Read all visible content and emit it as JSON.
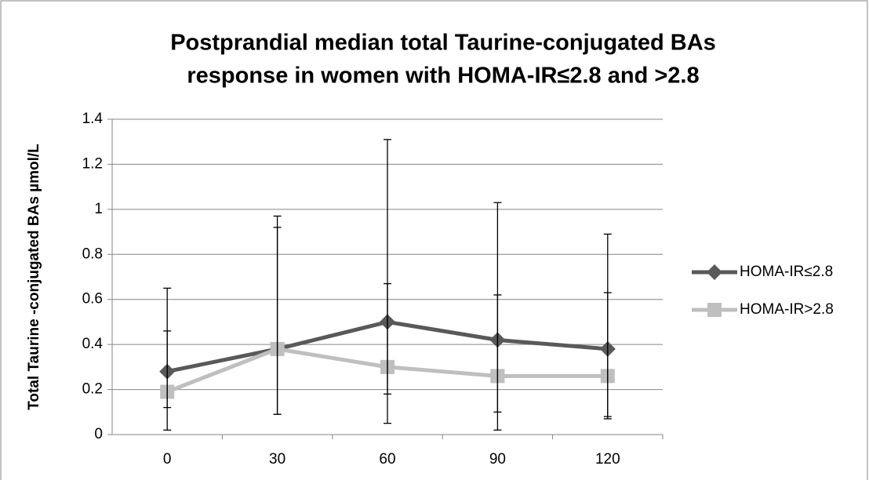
{
  "chart_data": {
    "type": "line",
    "title": [
      "Postprandial median total Taurine-conjugated BAs",
      "response in women with HOMA-IR≤2.8 and >2.8"
    ],
    "y_label": "Total Taurine -conjugated  BAs µmol/L",
    "categories": [
      "0",
      "30",
      "60",
      "90",
      "120"
    ],
    "series": [
      {
        "name": "HOMA-IR≤2.8",
        "color": "#595959",
        "marker": "diamond",
        "values": [
          0.28,
          0.38,
          0.5,
          0.42,
          0.38
        ],
        "lower": [
          0.12,
          0.09,
          0.18,
          0.1,
          0.08
        ],
        "upper": [
          0.65,
          0.97,
          1.31,
          1.03,
          0.89
        ]
      },
      {
        "name": "HOMA-IR>2.8",
        "color": "#bfbfbf",
        "marker": "square",
        "values": [
          0.19,
          0.38,
          0.3,
          0.26,
          0.26
        ],
        "lower": [
          0.02,
          0.09,
          0.05,
          0.02,
          0.07
        ],
        "upper": [
          0.46,
          0.92,
          0.67,
          0.62,
          0.63
        ]
      }
    ],
    "ylim": [
      0,
      1.4
    ],
    "yticks": [
      0,
      0.2,
      0.4,
      0.6,
      0.8,
      1,
      1.2,
      1.4
    ],
    "grid": true,
    "legend": "right"
  }
}
